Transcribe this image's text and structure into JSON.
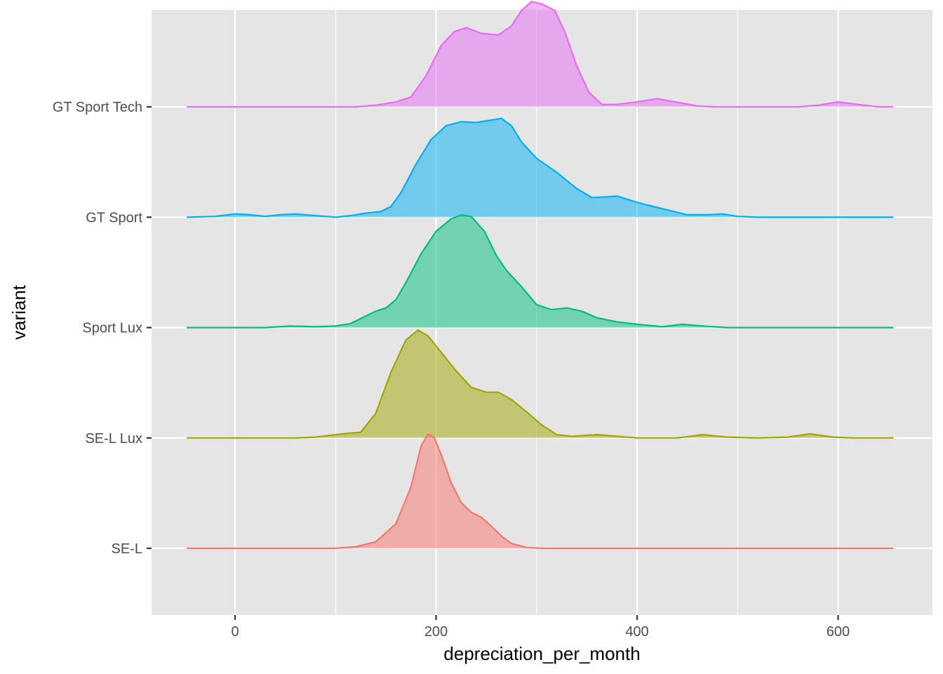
{
  "chart_data": {
    "type": "ridgeline",
    "xlabel": "depreciation_per_month",
    "ylabel": "variant",
    "xlim": [
      -83,
      690
    ],
    "x_ticks": [
      0,
      200,
      400,
      600
    ],
    "x_minor_ticks": [
      100,
      300,
      500
    ],
    "grid": true,
    "panel_background": "#e5e5e5",
    "categories": [
      "SE-L",
      "SE-L Lux",
      "Sport Lux",
      "GT Sport",
      "GT Sport Tech"
    ],
    "ridge_scale": 1.35,
    "draw_order": [
      "GT Sport Tech",
      "GT Sport",
      "Sport Lux",
      "SE-L Lux",
      "SE-L"
    ],
    "series": [
      {
        "name": "SE-L",
        "color": "#F8766D",
        "points": [
          [
            -48,
            0
          ],
          [
            100,
            0
          ],
          [
            120,
            0.02
          ],
          [
            140,
            0.08
          ],
          [
            160,
            0.3
          ],
          [
            175,
            0.75
          ],
          [
            185,
            1.25
          ],
          [
            192,
            1.4
          ],
          [
            198,
            1.36
          ],
          [
            205,
            1.15
          ],
          [
            215,
            0.8
          ],
          [
            225,
            0.56
          ],
          [
            235,
            0.44
          ],
          [
            245,
            0.38
          ],
          [
            255,
            0.27
          ],
          [
            265,
            0.15
          ],
          [
            275,
            0.06
          ],
          [
            290,
            0.01
          ],
          [
            305,
            0
          ],
          [
            655,
            0
          ]
        ]
      },
      {
        "name": "SE-L Lux",
        "color": "#A3A500",
        "points": [
          [
            -48,
            0
          ],
          [
            60,
            0
          ],
          [
            80,
            0.01
          ],
          [
            100,
            0.04
          ],
          [
            115,
            0.06
          ],
          [
            125,
            0.07
          ],
          [
            140,
            0.3
          ],
          [
            155,
            0.8
          ],
          [
            170,
            1.2
          ],
          [
            182,
            1.32
          ],
          [
            192,
            1.25
          ],
          [
            205,
            1.05
          ],
          [
            220,
            0.82
          ],
          [
            235,
            0.62
          ],
          [
            250,
            0.56
          ],
          [
            262,
            0.56
          ],
          [
            275,
            0.47
          ],
          [
            290,
            0.32
          ],
          [
            305,
            0.16
          ],
          [
            320,
            0.04
          ],
          [
            335,
            0.02
          ],
          [
            360,
            0.04
          ],
          [
            380,
            0.02
          ],
          [
            400,
            0
          ],
          [
            440,
            0
          ],
          [
            465,
            0.04
          ],
          [
            490,
            0.01
          ],
          [
            520,
            0
          ],
          [
            550,
            0.01
          ],
          [
            572,
            0.05
          ],
          [
            595,
            0.01
          ],
          [
            615,
            0
          ],
          [
            655,
            0
          ]
        ]
      },
      {
        "name": "Sport Lux",
        "color": "#00BF7D",
        "points": [
          [
            -48,
            0
          ],
          [
            30,
            0
          ],
          [
            55,
            0.02
          ],
          [
            80,
            0.01
          ],
          [
            100,
            0.02
          ],
          [
            115,
            0.05
          ],
          [
            130,
            0.14
          ],
          [
            140,
            0.2
          ],
          [
            150,
            0.24
          ],
          [
            160,
            0.34
          ],
          [
            170,
            0.55
          ],
          [
            185,
            0.9
          ],
          [
            200,
            1.18
          ],
          [
            215,
            1.33
          ],
          [
            225,
            1.38
          ],
          [
            235,
            1.36
          ],
          [
            248,
            1.18
          ],
          [
            260,
            0.88
          ],
          [
            270,
            0.7
          ],
          [
            285,
            0.5
          ],
          [
            300,
            0.28
          ],
          [
            315,
            0.22
          ],
          [
            330,
            0.24
          ],
          [
            345,
            0.2
          ],
          [
            360,
            0.12
          ],
          [
            380,
            0.07
          ],
          [
            400,
            0.04
          ],
          [
            425,
            0.01
          ],
          [
            445,
            0.04
          ],
          [
            465,
            0.02
          ],
          [
            490,
            0
          ],
          [
            655,
            0
          ]
        ]
      },
      {
        "name": "GT Sport",
        "color": "#00B0F6",
        "points": [
          [
            -48,
            0
          ],
          [
            -20,
            0.01
          ],
          [
            0,
            0.04
          ],
          [
            15,
            0.03
          ],
          [
            30,
            0.01
          ],
          [
            45,
            0.03
          ],
          [
            60,
            0.04
          ],
          [
            80,
            0.02
          ],
          [
            100,
            0
          ],
          [
            115,
            0.02
          ],
          [
            130,
            0.05
          ],
          [
            145,
            0.07
          ],
          [
            155,
            0.13
          ],
          [
            165,
            0.3
          ],
          [
            180,
            0.65
          ],
          [
            195,
            0.95
          ],
          [
            210,
            1.12
          ],
          [
            225,
            1.17
          ],
          [
            240,
            1.16
          ],
          [
            255,
            1.19
          ],
          [
            265,
            1.21
          ],
          [
            275,
            1.12
          ],
          [
            285,
            0.92
          ],
          [
            300,
            0.72
          ],
          [
            320,
            0.55
          ],
          [
            340,
            0.35
          ],
          [
            355,
            0.24
          ],
          [
            370,
            0.25
          ],
          [
            380,
            0.26
          ],
          [
            395,
            0.2
          ],
          [
            410,
            0.15
          ],
          [
            430,
            0.09
          ],
          [
            450,
            0.03
          ],
          [
            470,
            0.03
          ],
          [
            485,
            0.04
          ],
          [
            500,
            0.01
          ],
          [
            520,
            0
          ],
          [
            655,
            0
          ]
        ]
      },
      {
        "name": "GT Sport Tech",
        "color": "#E76BF3",
        "points": [
          [
            -48,
            0
          ],
          [
            120,
            0
          ],
          [
            140,
            0.02
          ],
          [
            160,
            0.06
          ],
          [
            175,
            0.12
          ],
          [
            190,
            0.38
          ],
          [
            205,
            0.75
          ],
          [
            218,
            0.92
          ],
          [
            230,
            0.97
          ],
          [
            245,
            0.9
          ],
          [
            262,
            0.88
          ],
          [
            275,
            0.99
          ],
          [
            285,
            1.18
          ],
          [
            295,
            1.29
          ],
          [
            305,
            1.26
          ],
          [
            318,
            1.18
          ],
          [
            328,
            0.92
          ],
          [
            340,
            0.5
          ],
          [
            352,
            0.18
          ],
          [
            365,
            0.03
          ],
          [
            380,
            0.03
          ],
          [
            400,
            0.06
          ],
          [
            420,
            0.1
          ],
          [
            438,
            0.06
          ],
          [
            460,
            0.01
          ],
          [
            480,
            0
          ],
          [
            560,
            0
          ],
          [
            580,
            0.02
          ],
          [
            600,
            0.06
          ],
          [
            620,
            0.03
          ],
          [
            640,
            0
          ],
          [
            655,
            0
          ]
        ]
      }
    ]
  }
}
